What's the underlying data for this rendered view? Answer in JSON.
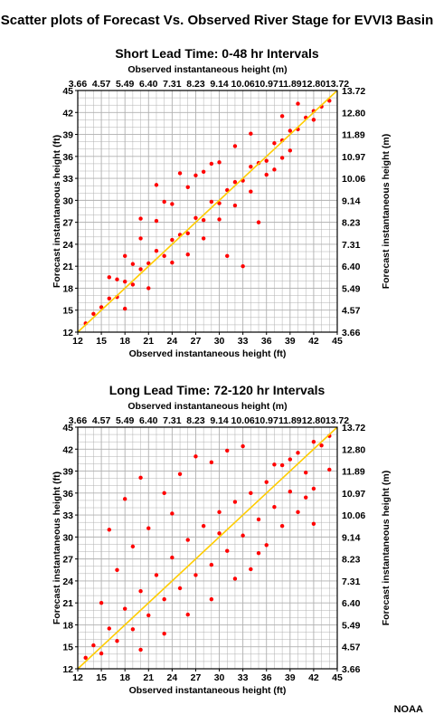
{
  "title": "Scatter plots of Forecast Vs. Observed River Stage for EVVI3 Basin",
  "credit": "NOAA",
  "colors": {
    "points": "#ff0000",
    "reference_line": "#ffcc00",
    "grid": "#b0b0b0",
    "axes": "#000000"
  },
  "chart_data": [
    {
      "type": "scatter",
      "title": "Short Lead Time: 0-48 hr Intervals",
      "xlabel": "Observed instantaneous height (ft)",
      "ylabel": "Forecast instantaneous height (ft)",
      "x2label": "Observed instantaneous height (m)",
      "y2label": "Forecast instantaneous height (m)",
      "xlim": [
        12,
        45
      ],
      "ylim": [
        12,
        45
      ],
      "xticks": [
        "12",
        "15",
        "18",
        "21",
        "24",
        "27",
        "30",
        "33",
        "36",
        "39",
        "42",
        "45"
      ],
      "yticks": [
        "12",
        "15",
        "18",
        "21",
        "24",
        "27",
        "30",
        "33",
        "36",
        "39",
        "42",
        "45"
      ],
      "x2ticks": [
        "3.66",
        "4.57",
        "5.49",
        "6.40",
        "7.31",
        "8.23",
        "9.14",
        "10.06",
        "10.97",
        "11.89",
        "12.80",
        "13.72"
      ],
      "y2ticks": [
        "3.66",
        "4.57",
        "5.49",
        "6.40",
        "7.31",
        "8.23",
        "9.14",
        "10.06",
        "10.97",
        "11.89",
        "12.80",
        "13.72"
      ],
      "grid": true,
      "reference_line": [
        [
          12,
          12
        ],
        [
          45,
          45
        ]
      ],
      "series": [
        {
          "values": [
            [
              13,
              13.2
            ],
            [
              14,
              14.5
            ],
            [
              15,
              15.4
            ],
            [
              16,
              16.6
            ],
            [
              17,
              16.8
            ],
            [
              18,
              18.9
            ],
            [
              19,
              18.5
            ],
            [
              20,
              20.6
            ],
            [
              21,
              21.4
            ],
            [
              22,
              23.1
            ],
            [
              23,
              22.4
            ],
            [
              24,
              24.6
            ],
            [
              25,
              25.3
            ],
            [
              26,
              25.5
            ],
            [
              27,
              27.6
            ],
            [
              28,
              27.3
            ],
            [
              29,
              29.8
            ],
            [
              30,
              29.6
            ],
            [
              31,
              31.4
            ],
            [
              32,
              32.5
            ],
            [
              33,
              32.7
            ],
            [
              34,
              34.6
            ],
            [
              35,
              35.1
            ],
            [
              36,
              35.4
            ],
            [
              37,
              37.8
            ],
            [
              38,
              38.2
            ],
            [
              39,
              39.5
            ],
            [
              40,
              39.7
            ],
            [
              41,
              41.3
            ],
            [
              42,
              42.2
            ],
            [
              43,
              42.8
            ],
            [
              44,
              43.6
            ],
            [
              16,
              19.5
            ],
            [
              18,
              22.4
            ],
            [
              20,
              24.8
            ],
            [
              22,
              27.2
            ],
            [
              24,
              29.5
            ],
            [
              26,
              31.8
            ],
            [
              28,
              33.9
            ],
            [
              30,
              35.2
            ],
            [
              32,
              37.4
            ],
            [
              34,
              39.1
            ],
            [
              18,
              15.2
            ],
            [
              21,
              18.0
            ],
            [
              24,
              21.5
            ],
            [
              26,
              22.6
            ],
            [
              28,
              24.8
            ],
            [
              30,
              27.4
            ],
            [
              32,
              29.3
            ],
            [
              34,
              31.2
            ],
            [
              36,
              33.5
            ],
            [
              38,
              35.8
            ],
            [
              20,
              27.5
            ],
            [
              22,
              32.1
            ],
            [
              25,
              33.7
            ],
            [
              27,
              33.4
            ],
            [
              31,
              22.4
            ],
            [
              33,
              21.0
            ],
            [
              35,
              27.0
            ],
            [
              38,
              41.5
            ],
            [
              40,
              43.2
            ],
            [
              42,
              41.0
            ],
            [
              29,
              35.0
            ],
            [
              23,
              29.8
            ],
            [
              19,
              21.3
            ],
            [
              17,
              19.2
            ],
            [
              37,
              34.2
            ],
            [
              39,
              36.8
            ]
          ]
        }
      ]
    },
    {
      "type": "scatter",
      "title": "Long Lead Time: 72-120 hr Intervals",
      "xlabel": "Observed instantaneous height (ft)",
      "ylabel": "Forecast instantaneous height (ft)",
      "x2label": "Observed instantaneous height (m)",
      "y2label": "Forecast instantaneous height (m)",
      "xlim": [
        12,
        45
      ],
      "ylim": [
        12,
        45
      ],
      "xticks": [
        "12",
        "15",
        "18",
        "21",
        "24",
        "27",
        "30",
        "33",
        "36",
        "39",
        "42",
        "45"
      ],
      "yticks": [
        "12",
        "15",
        "18",
        "21",
        "24",
        "27",
        "30",
        "33",
        "36",
        "39",
        "42",
        "45"
      ],
      "x2ticks": [
        "3.66",
        "4.57",
        "5.49",
        "6.40",
        "7.31",
        "8.23",
        "9.14",
        "10.06",
        "10.97",
        "11.89",
        "12.80",
        "13.72"
      ],
      "y2ticks": [
        "3.66",
        "4.57",
        "5.49",
        "6.40",
        "7.31",
        "8.23",
        "9.14",
        "10.06",
        "10.97",
        "11.89",
        "12.80",
        "13.72"
      ],
      "grid": true,
      "reference_line": [
        [
          12,
          12
        ],
        [
          45,
          45
        ]
      ],
      "series": [
        {
          "values": [
            [
              13,
              13.5
            ],
            [
              14,
              15.2
            ],
            [
              15,
              14.1
            ],
            [
              16,
              17.5
            ],
            [
              17,
              15.8
            ],
            [
              18,
              20.2
            ],
            [
              19,
              17.4
            ],
            [
              20,
              22.6
            ],
            [
              21,
              19.3
            ],
            [
              22,
              24.8
            ],
            [
              23,
              21.5
            ],
            [
              24,
              27.2
            ],
            [
              25,
              23.0
            ],
            [
              26,
              29.6
            ],
            [
              27,
              24.8
            ],
            [
              28,
              31.5
            ],
            [
              29,
              26.2
            ],
            [
              30,
              33.4
            ],
            [
              31,
              28.1
            ],
            [
              32,
              34.8
            ],
            [
              33,
              30.2
            ],
            [
              34,
              36.0
            ],
            [
              35,
              32.4
            ],
            [
              36,
              37.5
            ],
            [
              37,
              34.1
            ],
            [
              38,
              39.8
            ],
            [
              39,
              36.2
            ],
            [
              40,
              41.5
            ],
            [
              41,
              38.8
            ],
            [
              42,
              43.0
            ],
            [
              43,
              42.5
            ],
            [
              44,
              43.8
            ],
            [
              15,
              21.0
            ],
            [
              17,
              25.5
            ],
            [
              19,
              28.7
            ],
            [
              21,
              31.2
            ],
            [
              23,
              36.0
            ],
            [
              25,
              38.6
            ],
            [
              27,
              41.0
            ],
            [
              29,
              40.2
            ],
            [
              31,
              41.8
            ],
            [
              33,
              42.4
            ],
            [
              20,
              14.6
            ],
            [
              23,
              16.8
            ],
            [
              26,
              19.4
            ],
            [
              29,
              21.5
            ],
            [
              32,
              24.3
            ],
            [
              35,
              27.8
            ],
            [
              38,
              31.5
            ],
            [
              40,
              33.4
            ],
            [
              42,
              36.6
            ],
            [
              42,
              31.8
            ],
            [
              20,
              38.1
            ],
            [
              18,
              35.2
            ],
            [
              16,
              31.0
            ],
            [
              24,
              33.2
            ],
            [
              30,
              30.5
            ],
            [
              34,
              25.6
            ],
            [
              36,
              28.9
            ],
            [
              39,
              40.6
            ],
            [
              41,
              35.4
            ],
            [
              37,
              39.9
            ],
            [
              44,
              39.2
            ]
          ]
        }
      ]
    }
  ]
}
